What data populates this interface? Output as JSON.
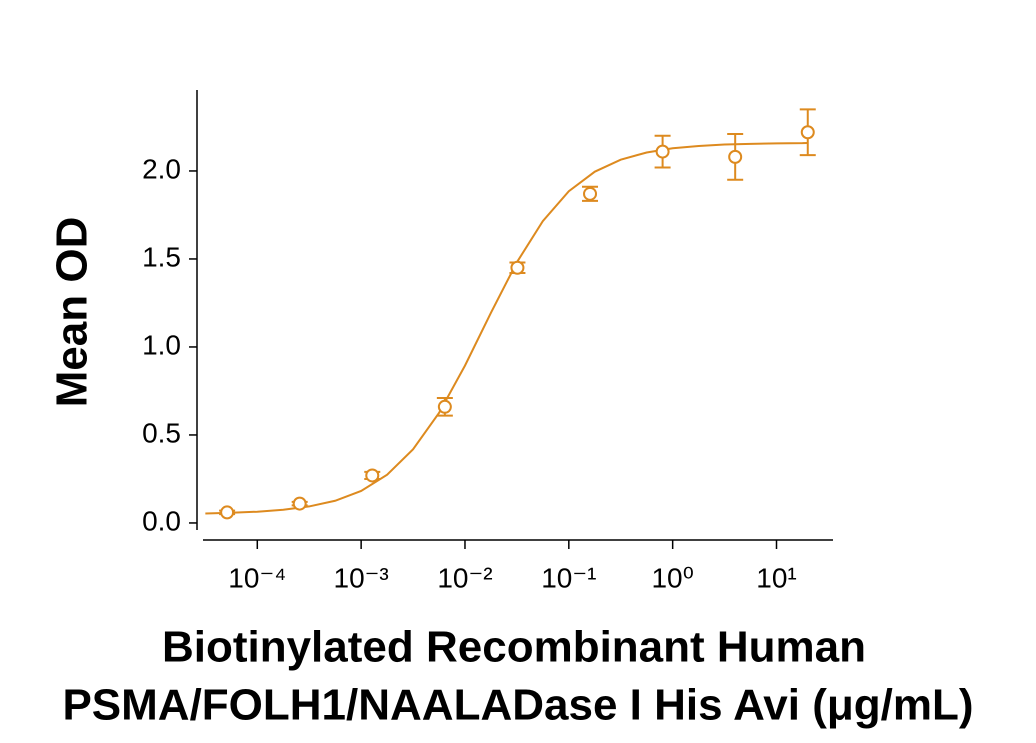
{
  "chart_data": {
    "type": "scatter",
    "ylabel": "Mean OD",
    "xlabel": [
      "Biotinylated Recombinant Human",
      "PSMA/FOLH1/NAALADase I His Avi (μg/mL)"
    ],
    "color": "#dd8a1f",
    "log_x": true,
    "x": [
      5.12e-05,
      0.000256,
      0.00128,
      0.0064,
      0.032,
      0.16,
      0.8,
      4,
      20
    ],
    "values": [
      0.06,
      0.11,
      0.27,
      0.66,
      1.45,
      1.87,
      2.11,
      2.08,
      2.22
    ],
    "errors": [
      0.01,
      0.01,
      0.02,
      0.05,
      0.03,
      0.04,
      0.09,
      0.13,
      0.13
    ],
    "fit_x": [
      3.16e-05,
      5.62e-05,
      0.0001,
      0.000178,
      0.000316,
      0.000562,
      0.001,
      0.00178,
      0.00316,
      0.00562,
      0.01,
      0.0178,
      0.0316,
      0.0562,
      0.1,
      0.178,
      0.316,
      0.562,
      1,
      1.78,
      3.16,
      5.62,
      10,
      17.8,
      20
    ],
    "fit_values": [
      0.054,
      0.058,
      0.064,
      0.075,
      0.094,
      0.126,
      0.182,
      0.274,
      0.418,
      0.625,
      0.894,
      1.195,
      1.481,
      1.715,
      1.885,
      1.996,
      2.064,
      2.105,
      2.129,
      2.142,
      2.15,
      2.154,
      2.157,
      2.158,
      2.159
    ],
    "xlim": [
      3e-05,
      35
    ],
    "ylim": [
      -0.04,
      2.46
    ],
    "xticks": [
      {
        "value": 0.0001,
        "label": "10⁻⁴"
      },
      {
        "value": 0.001,
        "label": "10⁻³"
      },
      {
        "value": 0.01,
        "label": "10⁻²"
      },
      {
        "value": 0.1,
        "label": "10⁻¹"
      },
      {
        "value": 1,
        "label": "10⁰"
      },
      {
        "value": 10,
        "label": "10¹"
      }
    ],
    "yticks": [
      {
        "value": 0,
        "label": "0.0"
      },
      0.5,
      {
        "value": 1,
        "label": "1.0"
      },
      1.5,
      {
        "value": 2,
        "label": "2.0"
      }
    ]
  }
}
